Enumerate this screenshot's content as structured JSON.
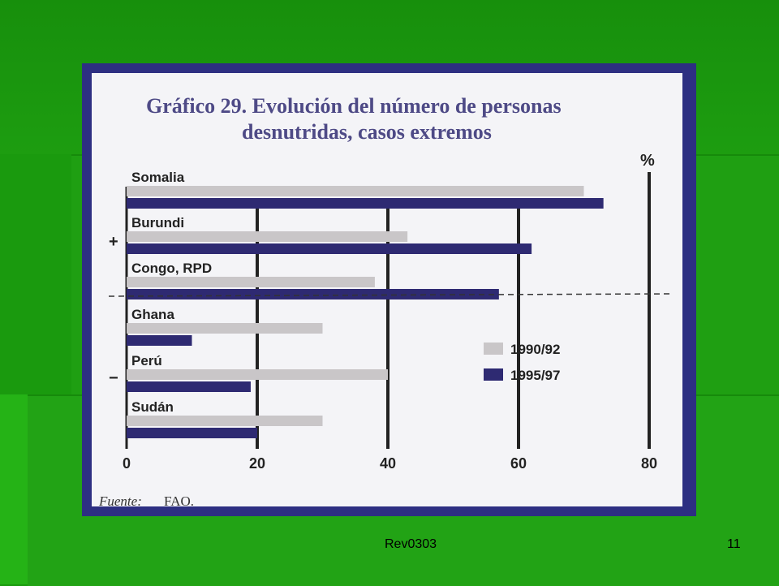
{
  "slide": {
    "footer_left": "Rev0303",
    "footer_right": "11"
  },
  "chart_data": {
    "type": "bar",
    "orientation": "horizontal",
    "title": "Gráfico 29. Evolución del número de personas desnutridas, casos extremos",
    "title_lines": [
      "Gráfico 29. Evolución del número de personas",
      "desnutridas, casos extremos"
    ],
    "unit_label": "%",
    "source": "Fuente: FAO.",
    "source_prefix": "Fuente:",
    "source_value": "FAO.",
    "categories": [
      "Somalia",
      "Burundi",
      "Congo, RPD",
      "Ghana",
      "Perú",
      "Sudán"
    ],
    "series": [
      {
        "name": "1990/92",
        "color": "#c9c6c8",
        "values": [
          70,
          43,
          38,
          30,
          40,
          30
        ]
      },
      {
        "name": "1995/97",
        "color": "#2e2a72",
        "values": [
          73,
          62,
          57,
          10,
          19,
          20
        ]
      }
    ],
    "group_marks": [
      "+",
      "−"
    ],
    "xticks": [
      "0",
      "20",
      "40",
      "60",
      "80"
    ],
    "xlim": [
      0,
      80
    ],
    "legend_position": "right"
  }
}
